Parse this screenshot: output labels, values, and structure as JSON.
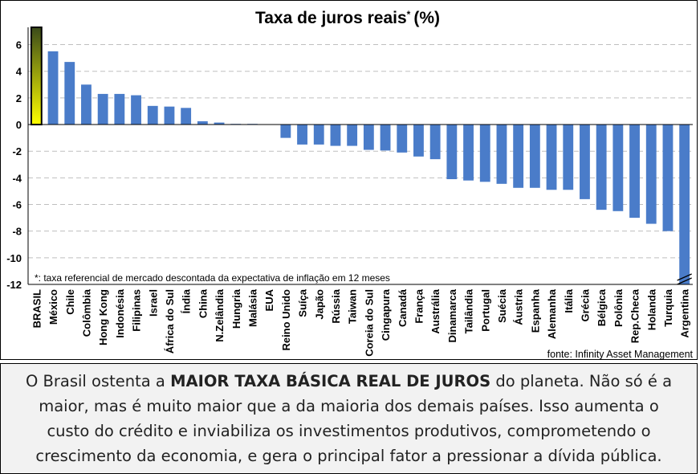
{
  "chart_data": {
    "type": "bar",
    "title": "Taxa de juros reais",
    "title_mark": "*",
    "title_unit": "(%)",
    "categories": [
      "BRASIL",
      "México",
      "Chile",
      "Colômbia",
      "Hong Kong",
      "Indonésia",
      "Filipinas",
      "Israel",
      "África do Sul",
      "Índia",
      "China",
      "N.Zelândia",
      "Hungria",
      "Malásia",
      "EUA",
      "Reino Unido",
      "Suíça",
      "Japão",
      "Rússia",
      "Taiwan",
      "Coreia do Sul",
      "Cingapura",
      "Canadá",
      "França",
      "Austrália",
      "Dinamarca",
      "Tailândia",
      "Portugal",
      "Suécia",
      "Áustria",
      "Espanha",
      "Alemanha",
      "Itália",
      "Grécia",
      "Bélgica",
      "Polônia",
      "Rep.Checa",
      "Holanda",
      "Turquia",
      "Argentina"
    ],
    "values": [
      7.3,
      5.5,
      4.7,
      3.0,
      2.3,
      2.3,
      2.2,
      1.4,
      1.35,
      1.25,
      0.25,
      0.15,
      0.05,
      0.05,
      0,
      -1.0,
      -1.5,
      -1.5,
      -1.6,
      -1.6,
      -1.9,
      -1.95,
      -2.1,
      -2.4,
      -2.6,
      -4.1,
      -4.2,
      -4.3,
      -4.45,
      -4.75,
      -4.75,
      -4.9,
      -4.9,
      -5.6,
      -6.4,
      -6.5,
      -7.0,
      -7.45,
      -8.0,
      -12.0
    ],
    "ylim": [
      -12,
      7.3
    ],
    "yticks": [
      6,
      4,
      2,
      0,
      -2,
      -4,
      -6,
      -8,
      -10,
      -12
    ],
    "xlabel": "",
    "ylabel": "",
    "grid": true,
    "bar_color": "#4a7cc9",
    "highlight": {
      "category": "BRASIL",
      "gradient_top": "#3a4a1a",
      "gradient_bottom": "#ffff00",
      "border": "#000000"
    },
    "axis_break_on": "Argentina",
    "footnote": "*: taxa referencial de mercado descontada da expectativa de inflação em 12 meses",
    "source": "fonte: Infinity Asset Management"
  },
  "caption": {
    "line1_pre": "O Brasil ostenta a ",
    "line1_bold": "MAIOR TAXA BÁSICA REAL DE JUROS",
    "line1_post": " do planeta. Não só é a",
    "line2": "maior, mas é muito maior que a da maioria dos demais países. Isso aumenta o",
    "line3": "custo do crédito e inviabiliza os investimentos produtivos, comprometendo o",
    "line4": "crescimento da economia, e gera o principal  fator a pressionar a dívida pública."
  }
}
